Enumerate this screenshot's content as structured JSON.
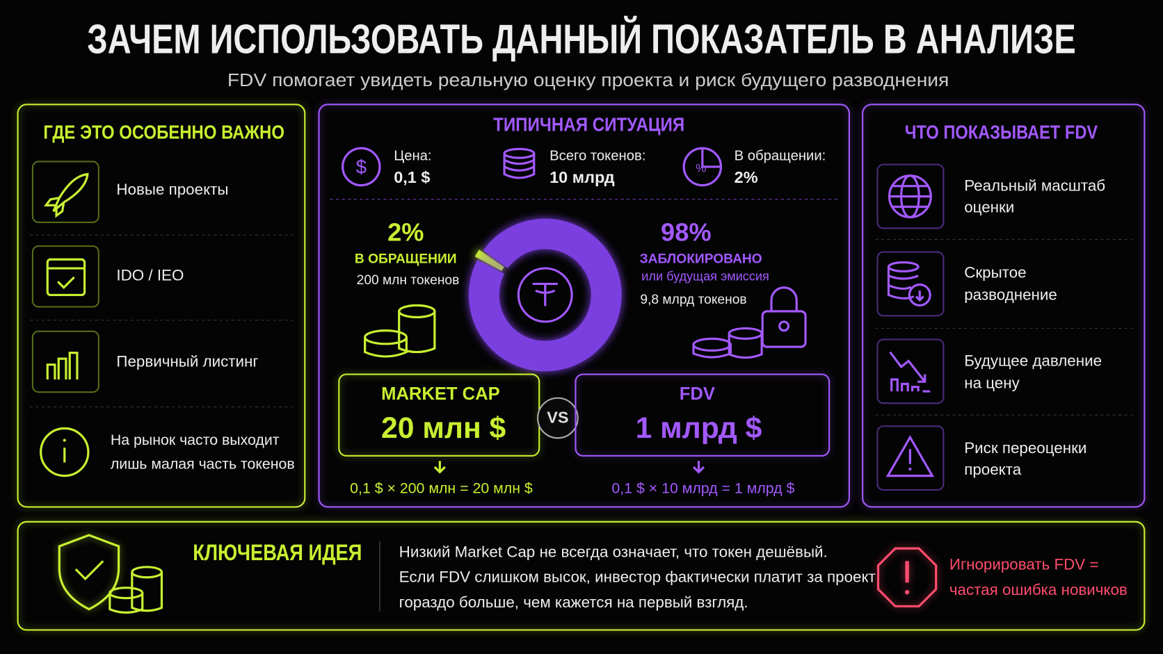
{
  "header": {
    "title": "ЗАЧЕМ ИСПОЛЬЗОВАТЬ ДАННЫЙ ПОКАЗАТЕЛЬ В АНАЛИЗЕ",
    "subtitle": "FDV помогает увидеть реальную оценку проекта и риск будущего разводнения"
  },
  "left": {
    "title": "ГДЕ ЭТО ОСОБЕННО ВАЖНО",
    "items": [
      "Новые проекты",
      "IDO / IEO",
      "Первичный листинг"
    ],
    "note": [
      "На рынок часто выходит",
      "лишь малая часть токенов"
    ]
  },
  "middle": {
    "title": "ТИПИЧНАЯ СИТУАЦИЯ",
    "stats": [
      {
        "label": "Цена:",
        "value": "0,1 $"
      },
      {
        "label": "Всего токенов:",
        "value": "10 млрд"
      },
      {
        "label": "В обращении:",
        "value": "2%"
      }
    ],
    "donut": {
      "segments": [
        {
          "value": 2,
          "label": "2%",
          "title": "В ОБРАЩЕНИИ",
          "detail": "200 млн токенов"
        },
        {
          "value": 98,
          "label": "98%",
          "title": "ЗАБЛОКИРОВАНО",
          "subtitle": "или будущая эмиссия",
          "detail": "9,8 млрд токенов"
        }
      ]
    },
    "market_cap": {
      "title": "MARKET CAP",
      "value": "20 млн $",
      "formula": "0,1 $ × 200 млн = 20 млн $"
    },
    "vs": "VS",
    "fdv": {
      "title": "FDV",
      "value": "1 млрд $",
      "formula": "0,1 $ × 10 млрд = 1 млрд $"
    }
  },
  "right": {
    "title": "ЧТО ПОКАЗЫВАЕТ FDV",
    "items": [
      [
        "Реальный масштаб",
        "оценки"
      ],
      [
        "Скрытое",
        "разводнение"
      ],
      [
        "Будущее давление",
        "на цену"
      ],
      [
        "Риск переоценки",
        "проекта"
      ]
    ]
  },
  "bottom": {
    "title": "КЛЮЧЕВАЯ ИДЕЯ",
    "text": [
      "Низкий Market Cap не всегда означает, что токен дешёвый.",
      "Если FDV слишком высок, инвестор фактически платит за проект",
      "гораздо больше, чем кажется на первый взгляд."
    ],
    "warning": [
      "Игнорировать FDV =",
      "частая ошибка новичков"
    ]
  }
}
